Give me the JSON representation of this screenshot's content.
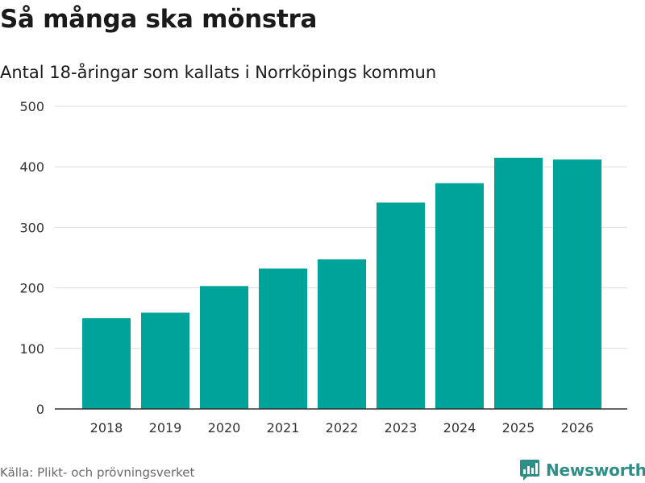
{
  "title": "Så många ska mönstra",
  "subtitle": "Antal 18-åringar som kallats i Norrköpings kommun",
  "source": "Källa: Plikt- och prövningsverket",
  "brand": {
    "name": "Newsworthy",
    "icon": "newsworthy-logo-icon"
  },
  "colors": {
    "bar": "#00a39a",
    "grid": "#dcdcdc",
    "axis": "#333333",
    "brand": "#2e8f88"
  },
  "chart_data": {
    "type": "bar",
    "title": "Så många ska mönstra",
    "subtitle": "Antal 18-åringar som kallats i Norrköpings kommun",
    "xlabel": "",
    "ylabel": "",
    "categories": [
      "2018",
      "2019",
      "2020",
      "2021",
      "2022",
      "2023",
      "2024",
      "2025",
      "2026"
    ],
    "values": [
      150,
      159,
      203,
      232,
      247,
      341,
      373,
      415,
      412
    ],
    "ylim": [
      0,
      500
    ],
    "yticks": [
      "0",
      "100",
      "200",
      "300",
      "400",
      "500"
    ],
    "grid": true
  }
}
